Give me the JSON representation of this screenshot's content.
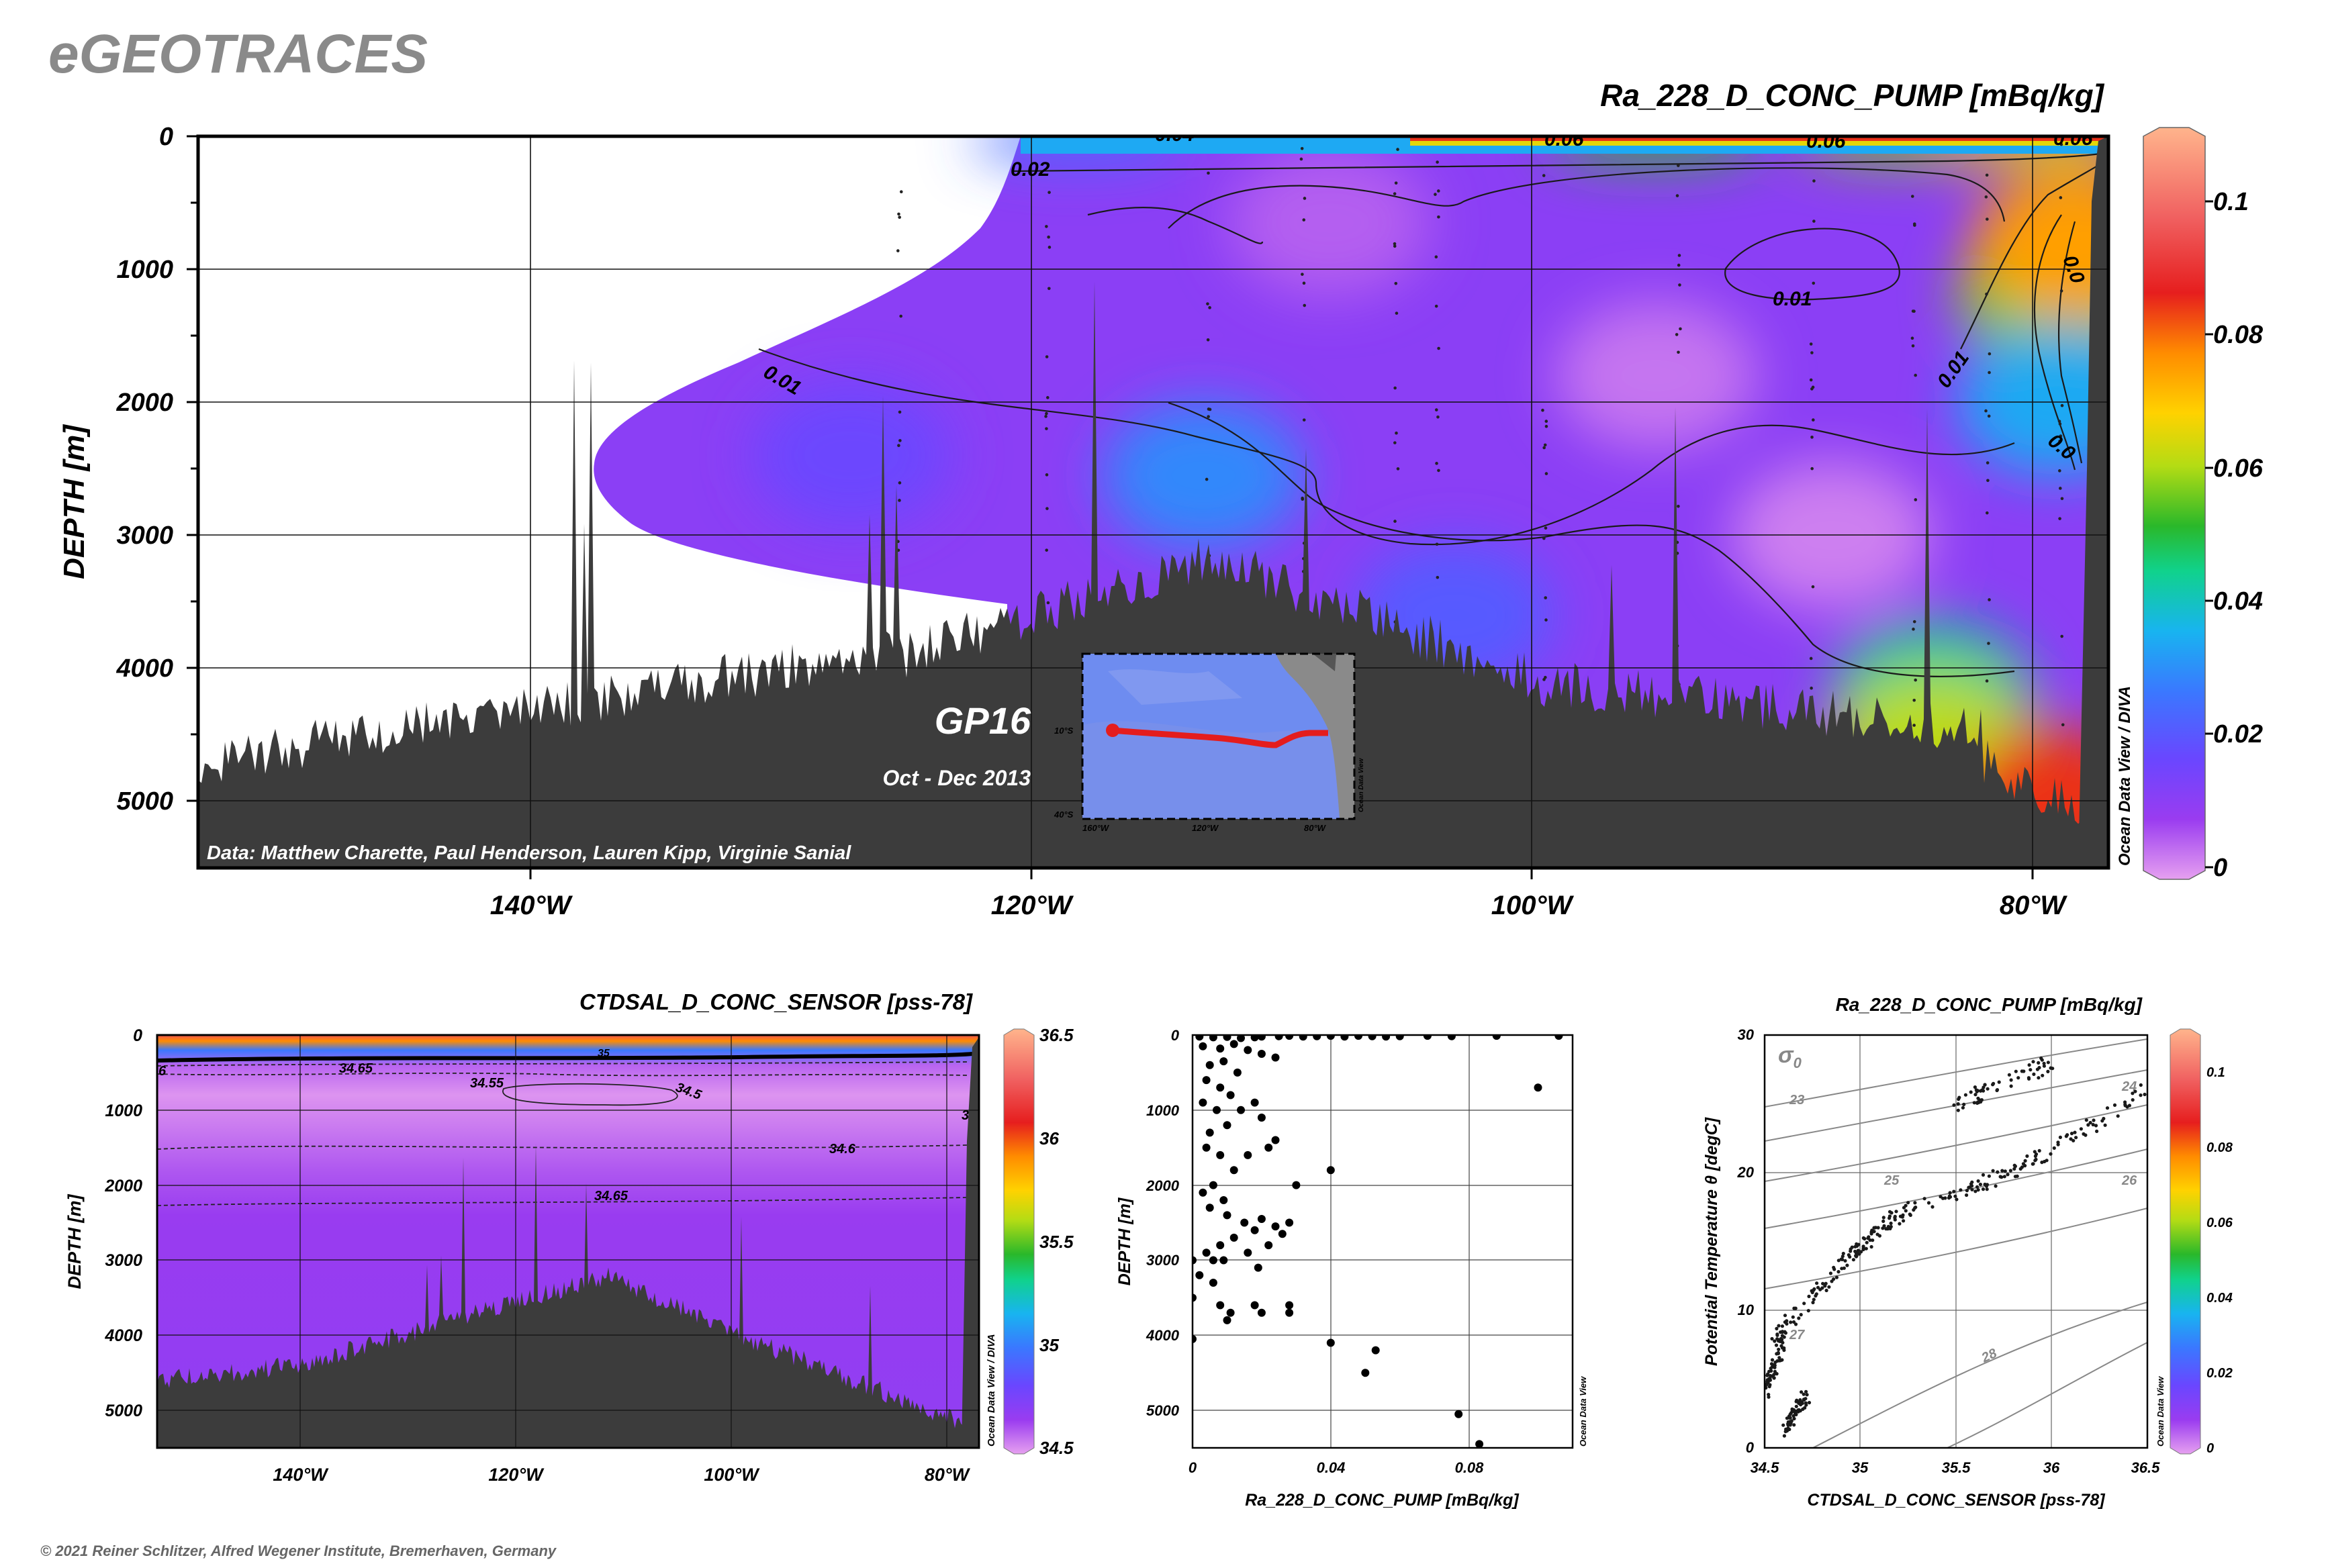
{
  "header": {
    "logo": "eGEOTRACES",
    "copyright": "© 2021 Reiner Schlitzer, Alfred Wegener Institute, Bremerhaven, Germany"
  },
  "colors": {
    "bathymetry": "#3c3c3c",
    "colormap": [
      "#e6a0f0",
      "#9a3cf0",
      "#6a46ff",
      "#3a78ff",
      "#18b4f0",
      "#10d28c",
      "#2ab82a",
      "#b4dc14",
      "#ffd200",
      "#ff8c00",
      "#e61e1e",
      "#f06060",
      "#ffb48c"
    ]
  },
  "main_section": {
    "title": "Ra_228_D_CONC_PUMP [mBq/kg]",
    "ylabel": "DEPTH [m]",
    "xticks": [
      "140°W",
      "120°W",
      "100°W",
      "80°W"
    ],
    "yticks": [
      "0",
      "1000",
      "2000",
      "3000",
      "4000",
      "5000"
    ],
    "colorbar_ticks": [
      "0.1",
      "0.08",
      "0.06",
      "0.04",
      "0.02",
      "0"
    ],
    "contour_labels": [
      "0.02",
      "0.04",
      "0.06",
      "0.06",
      "0.06",
      "0.01",
      "0.01",
      "0.01",
      "0.0",
      "0.0"
    ],
    "side_credit": "Ocean Data View / DIVA",
    "credit": "Data: Matthew Charette, Paul Henderson, Lauren Kipp, Virginie Sanial",
    "cruise": "GP16",
    "period": "Oct - Dec 2013",
    "inset": {
      "lat_labels": [
        "10°S",
        "40°S"
      ],
      "lon_labels": [
        "160°W",
        "120°W",
        "80°W"
      ],
      "credit": "Ocean Data View"
    }
  },
  "salinity_section": {
    "title": "CTDSAL_D_CONC_SENSOR [pss-78]",
    "ylabel": "DEPTH [m]",
    "xticks": [
      "140°W",
      "120°W",
      "100°W",
      "80°W"
    ],
    "yticks": [
      "0",
      "1000",
      "2000",
      "3000",
      "4000",
      "5000"
    ],
    "colorbar_ticks": [
      "36.5",
      "36",
      "35.5",
      "35",
      "34.5"
    ],
    "contour_labels": [
      "34.65",
      "34.55",
      "34.5",
      "34.6",
      "34.65",
      "35",
      "6",
      "3"
    ],
    "side_credit": "Ocean Data View / DIVA"
  },
  "profile_plot": {
    "xlabel": "Ra_228_D_CONC_PUMP [mBq/kg]",
    "ylabel": "DEPTH [m]",
    "xticks": [
      "0",
      "0.04",
      "0.08"
    ],
    "yticks": [
      "0",
      "1000",
      "2000",
      "3000",
      "4000",
      "5000"
    ],
    "side_credit": "Ocean Data View"
  },
  "ts_plot": {
    "title": "Ra_228_D_CONC_PUMP [mBq/kg]",
    "xlabel": "CTDSAL_D_CONC_SENSOR [pss-78]",
    "ylabel": "Potential Temperature θ [degC]",
    "xticks": [
      "34.5",
      "35",
      "35.5",
      "36",
      "36.5"
    ],
    "yticks": [
      "0",
      "10",
      "20",
      "30"
    ],
    "sigma_symbol": "σ",
    "sigma_sub": "0",
    "isopycnals": [
      "23",
      "24",
      "25",
      "26",
      "27",
      "28"
    ],
    "colorbar_ticks": [
      "0.1",
      "0.08",
      "0.06",
      "0.04",
      "0.02",
      "0"
    ],
    "side_credit": "Ocean Data View"
  },
  "chart_data": [
    {
      "type": "heatmap",
      "title": "Ra_228_D_CONC_PUMP [mBq/kg]",
      "ylabel": "DEPTH [m]",
      "xlim": [
        -153,
        -77
      ],
      "ylim": [
        5500,
        0
      ],
      "colorbar_range": [
        0,
        0.11
      ],
      "blobs": [
        {
          "lon": -108,
          "depth": 650,
          "value": 0.006
        },
        {
          "lon": -95,
          "depth": 1800,
          "value": 0.004
        },
        {
          "lon": -88,
          "depth": 3000,
          "value": 0.003
        },
        {
          "lon": -113,
          "depth": 2550,
          "value": 0.03
        },
        {
          "lon": -127,
          "depth": 2400,
          "value": 0.018
        },
        {
          "lon": -103,
          "depth": 3600,
          "value": 0.022
        },
        {
          "lon": -84,
          "depth": 4200,
          "value": 0.045
        },
        {
          "lon": -84,
          "depth": 4600,
          "value": 0.065
        },
        {
          "lon": -79,
          "depth": 1200,
          "value": 0.06
        },
        {
          "lon": -78.3,
          "depth": 800,
          "value": 0.08
        },
        {
          "lon": -79,
          "depth": 2000,
          "value": 0.035
        },
        {
          "lon": -79,
          "depth": 5000,
          "value": 0.09
        },
        {
          "lon": -95,
          "depth": 40,
          "value": 0.055
        },
        {
          "lon": -85,
          "depth": 40,
          "value": 0.06
        },
        {
          "lon": -80,
          "depth": 40,
          "value": 0.07
        },
        {
          "lon": -118,
          "depth": 40,
          "value": 0.025
        }
      ]
    },
    {
      "type": "heatmap",
      "title": "CTDSAL_D_CONC_SENSOR [pss-78]",
      "ylabel": "DEPTH [m]",
      "xlim": [
        -156,
        -77
      ],
      "ylim": [
        5500,
        0
      ],
      "colorbar_range": [
        34.5,
        36.5
      ],
      "layers": [
        {
          "depth": 0,
          "value": 36.3
        },
        {
          "depth": 80,
          "value": 36.0
        },
        {
          "depth": 200,
          "value": 35.0
        },
        {
          "depth": 400,
          "value": 34.6
        },
        {
          "depth": 800,
          "value": 34.52
        },
        {
          "depth": 1200,
          "value": 34.56
        },
        {
          "depth": 1800,
          "value": 34.62
        },
        {
          "depth": 2400,
          "value": 34.67
        },
        {
          "depth": 5500,
          "value": 34.7
        }
      ]
    },
    {
      "type": "scatter",
      "xlabel": "Ra_228_D_CONC_PUMP [mBq/kg]",
      "ylabel": "DEPTH [m]",
      "xlim": [
        0,
        0.11
      ],
      "ylim": [
        5500,
        0
      ],
      "points": [
        [
          0.002,
          20
        ],
        [
          0.006,
          30
        ],
        [
          0.01,
          25
        ],
        [
          0.014,
          40
        ],
        [
          0.018,
          30
        ],
        [
          0.02,
          20
        ],
        [
          0.025,
          15
        ],
        [
          0.028,
          10
        ],
        [
          0.032,
          20
        ],
        [
          0.036,
          15
        ],
        [
          0.04,
          10
        ],
        [
          0.044,
          20
        ],
        [
          0.048,
          10
        ],
        [
          0.052,
          15
        ],
        [
          0.056,
          20
        ],
        [
          0.06,
          15
        ],
        [
          0.068,
          10
        ],
        [
          0.075,
          15
        ],
        [
          0.088,
          10
        ],
        [
          0.106,
          10
        ],
        [
          0.003,
          150
        ],
        [
          0.008,
          180
        ],
        [
          0.012,
          120
        ],
        [
          0.016,
          200
        ],
        [
          0.02,
          250
        ],
        [
          0.024,
          300
        ],
        [
          0.005,
          400
        ],
        [
          0.009,
          350
        ],
        [
          0.013,
          500
        ],
        [
          0.004,
          600
        ],
        [
          0.008,
          700
        ],
        [
          0.011,
          800
        ],
        [
          0.003,
          900
        ],
        [
          0.007,
          1000
        ],
        [
          0.01,
          1200
        ],
        [
          0.005,
          1300
        ],
        [
          0.014,
          1000
        ],
        [
          0.018,
          900
        ],
        [
          0.02,
          1100
        ],
        [
          0.1,
          700
        ],
        [
          0.004,
          1500
        ],
        [
          0.008,
          1600
        ],
        [
          0.012,
          1800
        ],
        [
          0.006,
          2000
        ],
        [
          0.003,
          2100
        ],
        [
          0.009,
          2200
        ],
        [
          0.016,
          1600
        ],
        [
          0.022,
          1500
        ],
        [
          0.024,
          1400
        ],
        [
          0.005,
          2300
        ],
        [
          0.01,
          2400
        ],
        [
          0.015,
          2500
        ],
        [
          0.018,
          2600
        ],
        [
          0.02,
          2450
        ],
        [
          0.024,
          2550
        ],
        [
          0.026,
          2650
        ],
        [
          0.028,
          2500
        ],
        [
          0.012,
          2700
        ],
        [
          0.008,
          2800
        ],
        [
          0.004,
          2900
        ],
        [
          0.006,
          3000
        ],
        [
          0.009,
          3000
        ],
        [
          0.016,
          2900
        ],
        [
          0.019,
          3100
        ],
        [
          0.022,
          2800
        ],
        [
          0.03,
          2000
        ],
        [
          0.04,
          1800
        ],
        [
          0.002,
          3200
        ],
        [
          0.006,
          3300
        ],
        [
          0.0,
          3500
        ],
        [
          0.008,
          3600
        ],
        [
          0.011,
          3700
        ],
        [
          0.018,
          3600
        ],
        [
          0.02,
          3700
        ],
        [
          0.028,
          3600
        ],
        [
          0.028,
          3700
        ],
        [
          0.01,
          3800
        ],
        [
          0.0,
          4050
        ],
        [
          0.04,
          4100
        ],
        [
          0.053,
          4200
        ],
        [
          0.05,
          4500
        ],
        [
          0.077,
          5050
        ],
        [
          0.083,
          5450
        ],
        [
          0.0,
          3000
        ]
      ]
    },
    {
      "type": "scatter",
      "title": "Ra_228_D_CONC_PUMP [mBq/kg]",
      "xlabel": "CTDSAL_D_CONC_SENSOR [pss-78]",
      "ylabel": "Potential Temperature θ [degC]",
      "xlim": [
        34.5,
        36.5
      ],
      "ylim": [
        0,
        30
      ],
      "isopycnals": [
        23,
        24,
        25,
        26,
        27,
        28
      ],
      "clusters": [
        {
          "salinity": [
            34.6,
            34.72
          ],
          "theta": [
            1,
            4
          ]
        },
        {
          "salinity": [
            34.5,
            34.6
          ],
          "theta": [
            4,
            8
          ]
        },
        {
          "salinity": [
            34.55,
            34.95
          ],
          "theta": [
            8,
            14
          ]
        },
        {
          "salinity": [
            34.95,
            35.2
          ],
          "theta": [
            14,
            17
          ]
        },
        {
          "salinity": [
            35.2,
            35.8
          ],
          "theta": [
            17,
            20
          ]
        },
        {
          "salinity": [
            35.8,
            36.5
          ],
          "theta": [
            20,
            26
          ]
        },
        {
          "salinity": [
            35.5,
            36.0
          ],
          "theta": [
            25,
            28
          ]
        }
      ]
    }
  ]
}
